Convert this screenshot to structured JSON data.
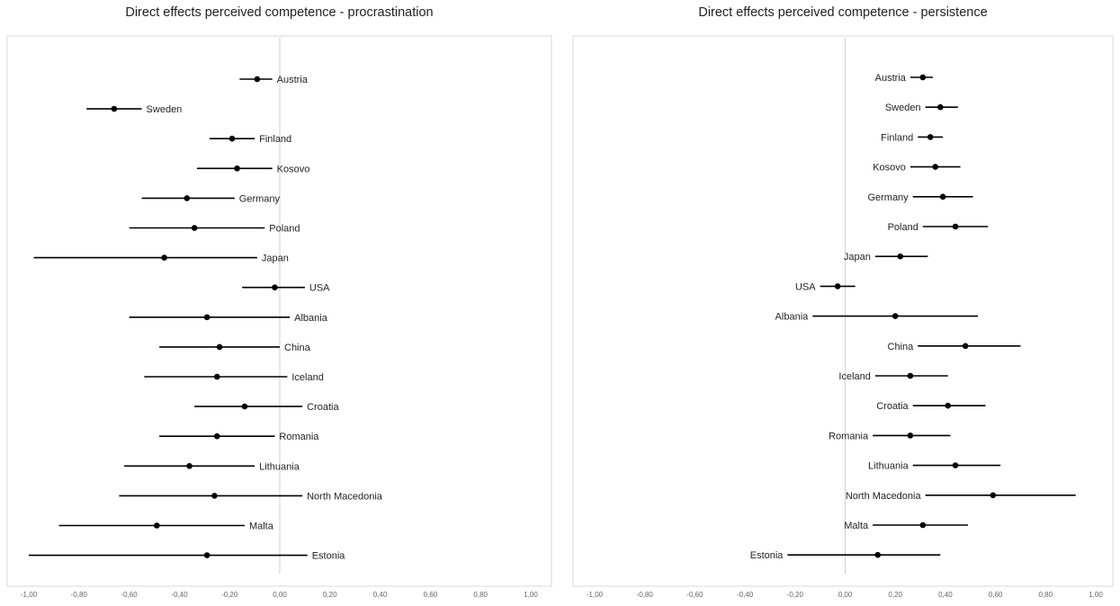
{
  "chart_data": [
    {
      "type": "scatter",
      "title": "Direct effects perceived competence - procrastination",
      "xlim": [
        -1.0,
        1.0
      ],
      "x_ticks": [
        "-1,00",
        "-0,80",
        "-0,60",
        "-0,40",
        "-0,20",
        "0,00",
        "0,20",
        "0,40",
        "0,60",
        "0,80",
        "1,00"
      ],
      "label_side": "right",
      "series": [
        {
          "country": "Austria",
          "estimate": -0.09,
          "lower": -0.16,
          "upper": -0.03
        },
        {
          "country": "Sweden",
          "estimate": -0.66,
          "lower": -0.77,
          "upper": -0.55
        },
        {
          "country": "Finland",
          "estimate": -0.19,
          "lower": -0.28,
          "upper": -0.1
        },
        {
          "country": "Kosovo",
          "estimate": -0.17,
          "lower": -0.33,
          "upper": -0.03
        },
        {
          "country": "Germany",
          "estimate": -0.37,
          "lower": -0.55,
          "upper": -0.18
        },
        {
          "country": "Poland",
          "estimate": -0.34,
          "lower": -0.6,
          "upper": -0.06
        },
        {
          "country": "Japan",
          "estimate": -0.46,
          "lower": -0.98,
          "upper": -0.09
        },
        {
          "country": "USA",
          "estimate": -0.02,
          "lower": -0.15,
          "upper": 0.1
        },
        {
          "country": "Albania",
          "estimate": -0.29,
          "lower": -0.6,
          "upper": 0.04
        },
        {
          "country": "China",
          "estimate": -0.24,
          "lower": -0.48,
          "upper": 0.0
        },
        {
          "country": "Iceland",
          "estimate": -0.25,
          "lower": -0.54,
          "upper": 0.03
        },
        {
          "country": "Croatia",
          "estimate": -0.14,
          "lower": -0.34,
          "upper": 0.09
        },
        {
          "country": "Romania",
          "estimate": -0.25,
          "lower": -0.48,
          "upper": -0.02
        },
        {
          "country": "Lithuania",
          "estimate": -0.36,
          "lower": -0.62,
          "upper": -0.1
        },
        {
          "country": "North Macedonia",
          "estimate": -0.26,
          "lower": -0.64,
          "upper": 0.09
        },
        {
          "country": "Malta",
          "estimate": -0.49,
          "lower": -0.88,
          "upper": -0.14
        },
        {
          "country": "Estonia",
          "estimate": -0.29,
          "lower": -1.0,
          "upper": 0.11
        }
      ]
    },
    {
      "type": "scatter",
      "title": "Direct effects perceived competence - persistence",
      "xlim": [
        -1.0,
        1.0
      ],
      "x_ticks": [
        "-1,00",
        "-0,80",
        "-0,60",
        "-0,40",
        "-0,20",
        "0,00",
        "0,20",
        "0,40",
        "0,60",
        "0,80",
        "1,00"
      ],
      "label_side": "left",
      "series": [
        {
          "country": "Austria",
          "estimate": 0.31,
          "lower": 0.26,
          "upper": 0.35
        },
        {
          "country": "Sweden",
          "estimate": 0.38,
          "lower": 0.32,
          "upper": 0.45
        },
        {
          "country": "Finland",
          "estimate": 0.34,
          "lower": 0.29,
          "upper": 0.39
        },
        {
          "country": "Kosovo",
          "estimate": 0.36,
          "lower": 0.26,
          "upper": 0.46
        },
        {
          "country": "Germany",
          "estimate": 0.39,
          "lower": 0.27,
          "upper": 0.51
        },
        {
          "country": "Poland",
          "estimate": 0.44,
          "lower": 0.31,
          "upper": 0.57
        },
        {
          "country": "Japan",
          "estimate": 0.22,
          "lower": 0.12,
          "upper": 0.33
        },
        {
          "country": "USA",
          "estimate": -0.03,
          "lower": -0.1,
          "upper": 0.04
        },
        {
          "country": "Albania",
          "estimate": 0.2,
          "lower": -0.13,
          "upper": 0.53
        },
        {
          "country": "China",
          "estimate": 0.48,
          "lower": 0.29,
          "upper": 0.7
        },
        {
          "country": "Iceland",
          "estimate": 0.26,
          "lower": 0.12,
          "upper": 0.41
        },
        {
          "country": "Croatia",
          "estimate": 0.41,
          "lower": 0.27,
          "upper": 0.56
        },
        {
          "country": "Romania",
          "estimate": 0.26,
          "lower": 0.11,
          "upper": 0.42
        },
        {
          "country": "Lithuania",
          "estimate": 0.44,
          "lower": 0.27,
          "upper": 0.62
        },
        {
          "country": "North Macedonia",
          "estimate": 0.59,
          "lower": 0.32,
          "upper": 0.92
        },
        {
          "country": "Malta",
          "estimate": 0.31,
          "lower": 0.11,
          "upper": 0.49
        },
        {
          "country": "Estonia",
          "estimate": 0.13,
          "lower": -0.23,
          "upper": 0.38
        }
      ]
    }
  ]
}
